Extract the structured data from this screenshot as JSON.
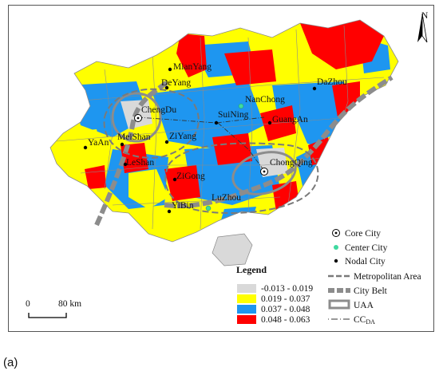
{
  "north": "N",
  "scalebar": {
    "zero": "0",
    "end": "80 km"
  },
  "cities": [
    {
      "name": "MianYang",
      "kind": "nodal"
    },
    {
      "name": "DeYang",
      "kind": "nodal"
    },
    {
      "name": "ChengDu",
      "kind": "core"
    },
    {
      "name": "NanChong",
      "kind": "center"
    },
    {
      "name": "SuiNing",
      "kind": "nodal"
    },
    {
      "name": "GuangAn",
      "kind": "nodal"
    },
    {
      "name": "DaZhou",
      "kind": "nodal"
    },
    {
      "name": "YaAn",
      "kind": "nodal"
    },
    {
      "name": "MeiShan",
      "kind": "nodal"
    },
    {
      "name": "ZiYang",
      "kind": "nodal"
    },
    {
      "name": "LeShan",
      "kind": "nodal"
    },
    {
      "name": "ZiGong",
      "kind": "nodal"
    },
    {
      "name": "ChongQing",
      "kind": "core"
    },
    {
      "name": "YiBin",
      "kind": "nodal"
    },
    {
      "name": "LuZhou",
      "kind": "center"
    }
  ],
  "legend": {
    "title": "Legend",
    "classes": [
      {
        "label": "-0.013 - 0.019",
        "color": "#d9d9d9"
      },
      {
        "label": "0.019 - 0.037",
        "color": "#ffff00"
      },
      {
        "label": "0.037 - 0.048",
        "color": "#1e96f0"
      },
      {
        "label": "0.048 - 0.063",
        "color": "#ff0000"
      }
    ],
    "symbols": [
      {
        "label": "Core City",
        "kind": "core"
      },
      {
        "label": "Center City",
        "kind": "center"
      },
      {
        "label": "Nodal City",
        "kind": "nodal"
      },
      {
        "label": "Metropolitan Area",
        "kind": "metro"
      },
      {
        "label": "City Belt",
        "kind": "belt"
      },
      {
        "label": "UAA",
        "kind": "uaa"
      },
      {
        "label": "CC",
        "sub": "DA",
        "kind": "cc"
      }
    ]
  },
  "colors": {
    "boundary": "#8a8a8a",
    "belt": "#8c8c8c",
    "center": "#3fd9a0"
  },
  "caption": "(a)"
}
